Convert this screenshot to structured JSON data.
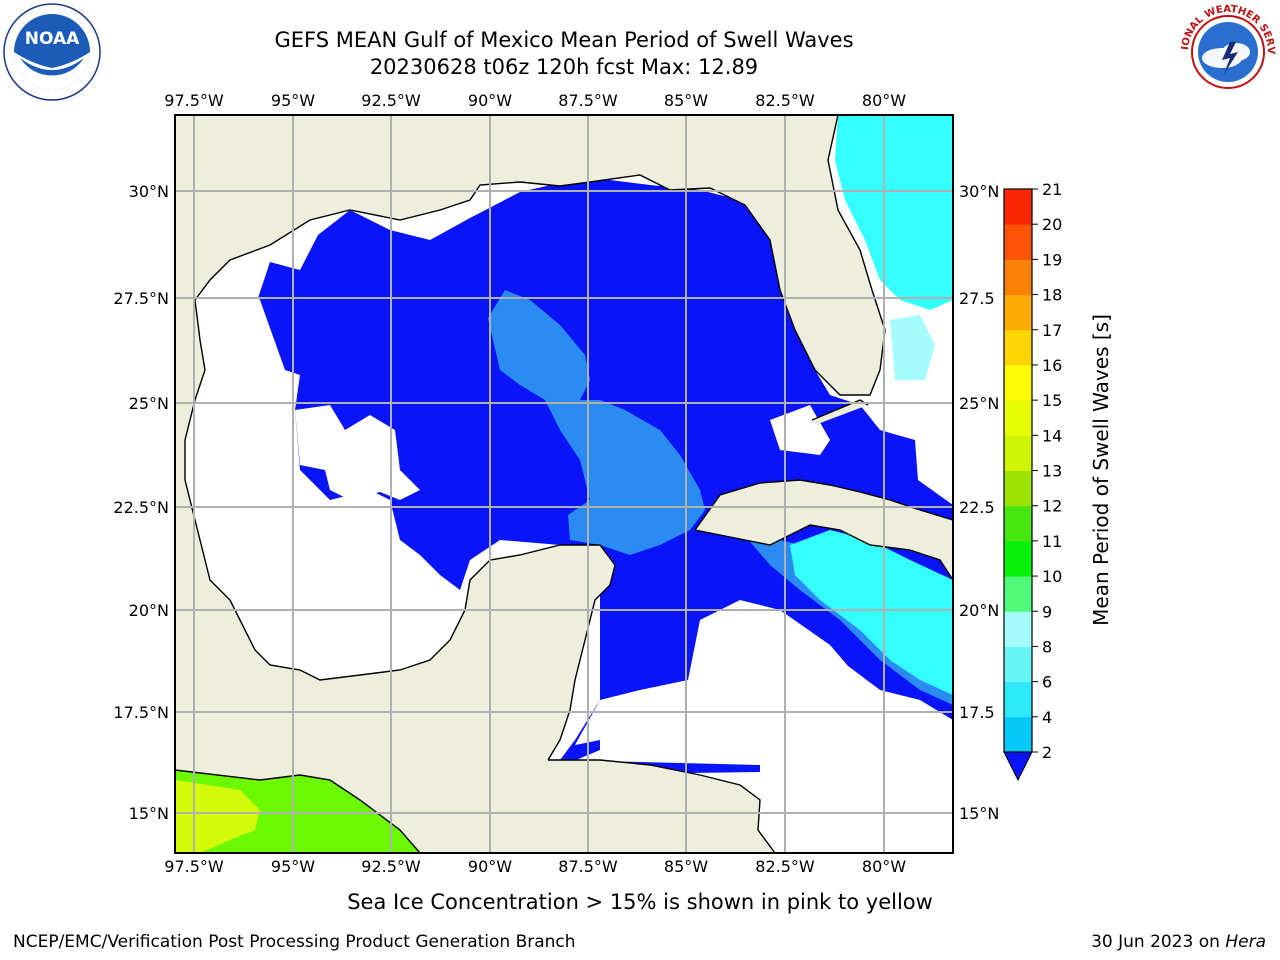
{
  "header": {
    "title_line1": "GEFS MEAN Gulf of Mexico Mean Period of Swell Waves",
    "title_line2": "20230628 t06z 120h fcst   Max: 12.89"
  },
  "logos": {
    "left": {
      "name": "noaa-logo",
      "text": "NOAA"
    },
    "right": {
      "name": "nws-logo",
      "text": "NATIONAL WEATHER SERVICE"
    }
  },
  "axes": {
    "lon_labels": [
      "97.5°W",
      "95°W",
      "92.5°W",
      "90°W",
      "87.5°W",
      "85°W",
      "82.5°W",
      "80°W"
    ],
    "lat_labels_left": [
      "30°N",
      "27.5°N",
      "25°N",
      "22.5°N",
      "20°N",
      "17.5°N",
      "15°N"
    ],
    "lat_labels_right": [
      "30°N",
      "27.5",
      "25°N",
      "22.5",
      "20°N",
      "17.5",
      "15°N"
    ]
  },
  "colorbar": {
    "label": "Mean Period of Swell Waves [s]",
    "ticks": [
      "2",
      "4",
      "6",
      "8",
      "9",
      "10",
      "11",
      "12",
      "13",
      "14",
      "15",
      "16",
      "17",
      "18",
      "19",
      "20",
      "21"
    ],
    "colors": [
      "#0a6cf8",
      "#04c8f8",
      "#2de8f8",
      "#66f4f4",
      "#a4fcfc",
      "#50f97a",
      "#08f00a",
      "#48e410",
      "#9ce004",
      "#cef406",
      "#e8fc04",
      "#fcfc04",
      "#fcd604",
      "#fcaa04",
      "#fc8004",
      "#fc5404",
      "#fc2804",
      "#fc0404"
    ],
    "under_color": "#0a14f8"
  },
  "colors": {
    "land": "#eeeedc",
    "gulf_swell": "#0a14f8",
    "mid_swell": "#2a8cf2",
    "cyan_swell": "#33ffff",
    "green_swell": "#6cf800",
    "yellow_swell": "#d4fc08"
  },
  "footer": {
    "note": "Sea Ice Concentration > 15% is shown in pink to yellow",
    "credit": "NCEP/EMC/Verification Post Processing Product Generation Branch",
    "date": "30 Jun 2023 on ",
    "system": "Hera"
  }
}
